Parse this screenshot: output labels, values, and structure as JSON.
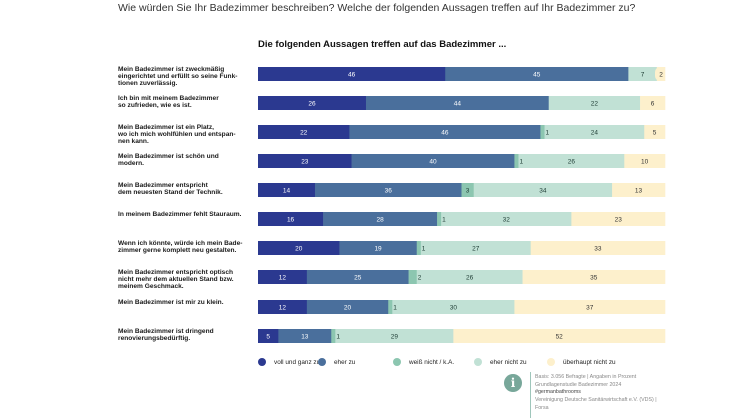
{
  "question": "Wie würden Sie Ihr Badezimmer beschreiben? Welche der folgenden Aussagen treffen auf Ihr Badezimmer zu?",
  "subtitle": "Die folgenden Aussagen treffen auf das Badezimmer ...",
  "colors": [
    "#2b3990",
    "#4a6f9c",
    "#8cc6b0",
    "#c1e1d5",
    "#fdf0cc"
  ],
  "source": {
    "lines": [
      "Basis: 3.056 Befragte | Angaben in Prozent",
      "Grundlagenstudie Badezimmer 2024",
      "#germanbathrooms",
      "Vereinigung Deutsche Sanitärwirtschaft e.V. (VDS) |",
      "Forsa"
    ]
  },
  "chart_data": {
    "type": "bar",
    "orientation": "horizontal",
    "stacked": true,
    "title": "Die folgenden Aussagen treffen auf das Badezimmer ...",
    "unit": "Prozent",
    "categories": [
      "Mein Badezimmer ist zweckmäßig eingerichtet und erfüllt so seine Funktionen zuverlässig.",
      "Ich bin mit meinem Badezimmer so zufrieden, wie es ist.",
      "Mein Badezimmer ist ein Platz, wo ich mich wohlfühlen und entspannen kann.",
      "Mein Badezimmer ist schön und modern.",
      "Mein Badezimmer entspricht dem neuesten Stand der Technik.",
      "In meinem Badezimmer fehlt Stauraum.",
      "Wenn ich könnte, würde ich mein Badezimmer gerne komplett neu gestalten.",
      "Mein Badezimmer entspricht optisch nicht mehr dem aktuellen Stand bzw. meinem Geschmack.",
      "Mein Badezimmer ist mir zu klein.",
      "Mein Badezimmer ist dringend renovierungsbedürftig."
    ],
    "label_lines": [
      [
        "Mein Badezimmer ist zweckmäßig",
        "eingerichtet und erfüllt so seine Funk-",
        "tionen zuverlässig."
      ],
      [
        "Ich bin mit meinem Badezimmer",
        "so zufrieden, wie es ist."
      ],
      [
        "Mein Badezimmer ist ein Platz,",
        "wo ich mich  wohlfühlen und entspan-",
        "nen kann."
      ],
      [
        "Mein Badezimmer ist schön und",
        "modern."
      ],
      [
        "Mein Badezimmer entspricht",
        "dem neuesten Stand der Technik."
      ],
      [
        "In meinem Badezimmer fehlt Stauraum."
      ],
      [
        "Wenn ich könnte, würde ich mein Bade-",
        "zimmer  gerne komplett neu gestalten."
      ],
      [
        "Mein Badezimmer entspricht optisch",
        "nicht mehr dem aktuellen Stand bzw.",
        "meinem Geschmack."
      ],
      [
        "Mein Badezimmer ist mir zu klein."
      ],
      [
        "Mein Badezimmer ist dringend",
        "renovierungsbedürftig."
      ]
    ],
    "series": [
      {
        "name": "voll und ganz zu",
        "values": [
          46,
          26,
          22,
          23,
          14,
          16,
          20,
          12,
          12,
          5
        ]
      },
      {
        "name": "eher zu",
        "values": [
          45,
          44,
          46,
          40,
          36,
          28,
          19,
          25,
          20,
          13
        ]
      },
      {
        "name": "weiß nicht / k.A.",
        "values": [
          0,
          0,
          1,
          1,
          3,
          1,
          1,
          2,
          1,
          1
        ]
      },
      {
        "name": "eher nicht zu",
        "values": [
          7,
          22,
          24,
          26,
          34,
          32,
          27,
          26,
          30,
          29
        ]
      },
      {
        "name": "überhaupt nicht zu",
        "values": [
          2,
          6,
          5,
          10,
          13,
          23,
          33,
          35,
          37,
          52
        ]
      }
    ]
  }
}
